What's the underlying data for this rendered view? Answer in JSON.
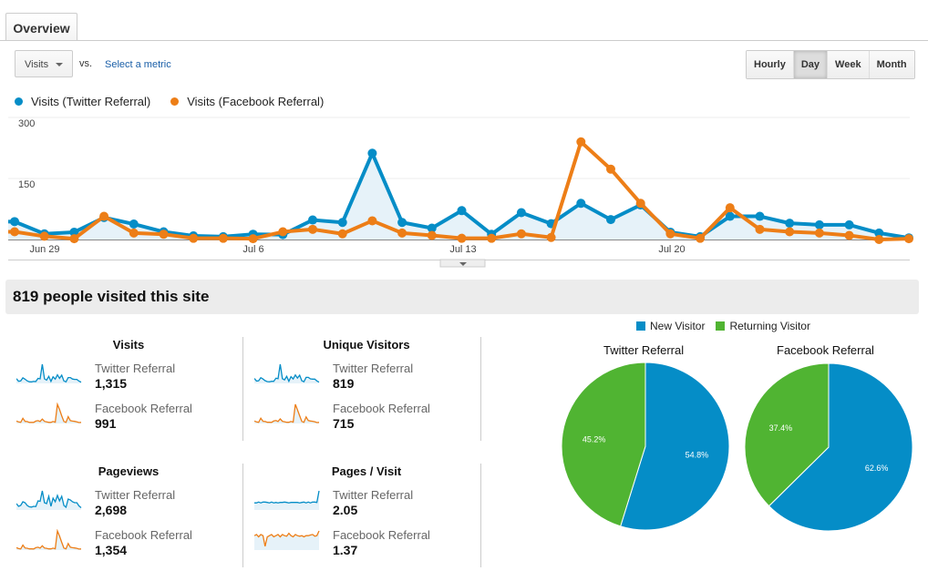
{
  "tabs": [
    {
      "label": "Overview"
    }
  ],
  "metric_selector": {
    "value": "Visits",
    "vs_label": "vs.",
    "compare_link": "Select a metric"
  },
  "granularity": {
    "options": [
      "Hourly",
      "Day",
      "Week",
      "Month"
    ],
    "selected": "Day"
  },
  "colors": {
    "twitter": "#058dc7",
    "facebook": "#ed7e17",
    "new_visitor": "#058dc7",
    "returning_visitor": "#50b432",
    "banner_bg": "#ececec"
  },
  "chart_data": [
    {
      "type": "line",
      "series": [
        {
          "name": "Visits (Twitter Referral)",
          "color": "#058dc7",
          "values": [
            44,
            14,
            18,
            54,
            38,
            19,
            9,
            7,
            13,
            12,
            48,
            42,
            212,
            42,
            28,
            71,
            13,
            66,
            39,
            89,
            49,
            85,
            18,
            7,
            57,
            57,
            40,
            36,
            36,
            16,
            4
          ]
        },
        {
          "name": "Visits (Facebook Referral)",
          "color": "#ed7e17",
          "values": [
            19,
            8,
            2,
            57,
            16,
            13,
            3,
            3,
            2,
            19,
            25,
            14,
            46,
            16,
            10,
            3,
            3,
            14,
            5,
            240,
            173,
            89,
            14,
            3,
            78,
            25,
            19,
            16,
            10,
            0,
            2
          ]
        }
      ],
      "x_start": "Jun 28",
      "x_tick_labels": [
        "Jun 29",
        "Jul 6",
        "Jul 13",
        "Jul 20"
      ],
      "y_tick_labels": [
        "300",
        "150"
      ],
      "ylim": [
        0,
        300
      ],
      "grid": true,
      "legend": "top-left",
      "area_fill_first_series": true
    },
    {
      "type": "pie",
      "title": "Twitter Referral",
      "slices": [
        {
          "name": "New Visitor",
          "value": 54.8,
          "label": "54.8%"
        },
        {
          "name": "Returning Visitor",
          "value": 45.2,
          "label": "45.2%"
        }
      ]
    },
    {
      "type": "pie",
      "title": "Facebook Referral",
      "slices": [
        {
          "name": "New Visitor",
          "value": 62.6,
          "label": "62.6%"
        },
        {
          "name": "Returning Visitor",
          "value": 37.4,
          "label": "37.4%"
        }
      ]
    }
  ],
  "summary": {
    "headline": "819 people visited this site"
  },
  "pie_legend": [
    "New Visitor",
    "Returning Visitor"
  ],
  "scorecards": [
    {
      "title": "Visits",
      "rows": [
        {
          "label": "Twitter Referral",
          "value": "1,315",
          "spark": [
            44,
            14,
            18,
            54,
            38,
            19,
            9,
            7,
            13,
            12,
            48,
            42,
            212,
            42,
            28,
            71,
            13,
            66,
            39,
            89,
            49,
            85,
            18,
            7,
            57,
            57,
            40,
            36,
            36,
            16,
            4
          ]
        },
        {
          "label": "Facebook Referral",
          "value": "991",
          "spark": [
            19,
            8,
            2,
            57,
            16,
            13,
            3,
            3,
            2,
            19,
            25,
            14,
            46,
            16,
            10,
            3,
            3,
            14,
            5,
            240,
            173,
            89,
            14,
            3,
            78,
            25,
            19,
            16,
            10,
            0,
            2
          ]
        }
      ]
    },
    {
      "title": "Unique Visitors",
      "rows": [
        {
          "label": "Twitter Referral",
          "value": "819",
          "spark": [
            40,
            14,
            17,
            48,
            34,
            18,
            9,
            7,
            12,
            12,
            42,
            38,
            180,
            38,
            26,
            60,
            12,
            58,
            35,
            75,
            44,
            72,
            17,
            7,
            50,
            50,
            36,
            33,
            33,
            15,
            4
          ]
        },
        {
          "label": "Facebook Referral",
          "value": "715",
          "spark": [
            17,
            7,
            2,
            48,
            14,
            12,
            3,
            3,
            2,
            17,
            22,
            12,
            40,
            14,
            9,
            3,
            3,
            12,
            5,
            200,
            140,
            75,
            12,
            3,
            62,
            22,
            17,
            14,
            9,
            0,
            2
          ]
        }
      ]
    },
    {
      "title": "Pageviews",
      "rows": [
        {
          "label": "Twitter Referral",
          "value": "2,698",
          "spark": [
            60,
            30,
            40,
            80,
            70,
            40,
            25,
            22,
            30,
            28,
            90,
            85,
            200,
            70,
            60,
            140,
            30,
            120,
            80,
            150,
            90,
            140,
            40,
            20,
            110,
            100,
            80,
            70,
            70,
            35,
            15
          ]
        },
        {
          "label": "Facebook Referral",
          "value": "1,354",
          "spark": [
            25,
            10,
            4,
            70,
            20,
            16,
            5,
            5,
            4,
            25,
            33,
            18,
            60,
            20,
            14,
            5,
            5,
            18,
            7,
            320,
            230,
            120,
            18,
            5,
            100,
            34,
            25,
            21,
            14,
            2,
            3
          ]
        }
      ]
    },
    {
      "title": "Pages / Visit",
      "rows": [
        {
          "label": "Twitter Referral",
          "value": "2.05",
          "spark": [
            1.8,
            1.8,
            1.9,
            1.8,
            1.9,
            1.9,
            1.85,
            1.8,
            1.9,
            1.8,
            1.85,
            1.8,
            1.85,
            1.85,
            1.9,
            1.85,
            1.8,
            1.85,
            1.85,
            1.85,
            1.85,
            1.8,
            1.85,
            1.9,
            1.8,
            1.9,
            1.8,
            1.9,
            1.9,
            1.85,
            3.2
          ]
        },
        {
          "label": "Facebook Referral",
          "value": "1.37",
          "spark": [
            1.5,
            1.6,
            1.4,
            1.6,
            1.5,
            0.6,
            1.4,
            1.5,
            1.6,
            1.4,
            1.5,
            1.6,
            1.4,
            1.6,
            1.5,
            1.45,
            1.7,
            1.5,
            1.4,
            1.6,
            1.5,
            1.45,
            1.5,
            1.4,
            1.5,
            1.5,
            1.55,
            1.6,
            1.45,
            1.5,
            1.9
          ]
        }
      ]
    }
  ]
}
